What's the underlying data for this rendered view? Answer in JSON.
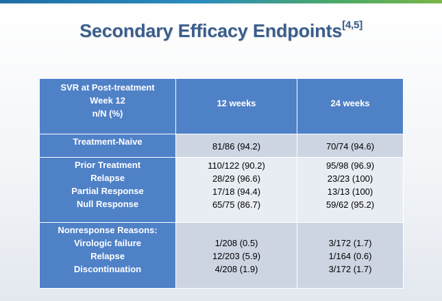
{
  "title": {
    "text": "Secondary Efficacy Endpoints",
    "ref": "[4,5]"
  },
  "table": {
    "header": {
      "col1_lines": [
        "SVR at Post-treatment",
        "Week 12",
        "n/N (%)"
      ],
      "col2": "12 weeks",
      "col3": "24 weeks"
    },
    "groups": [
      {
        "labels": [
          "Treatment-Naive"
        ],
        "col2": [
          "81/86 (94.2)"
        ],
        "col3": [
          "70/74 (94.6)"
        ]
      },
      {
        "labels": [
          "Prior Treatment",
          "Relapse",
          "Partial Response",
          "Null Response"
        ],
        "col2": [
          "110/122 (90.2)",
          "28/29 (96.6)",
          "17/18 (94.4)",
          "65/75 (86.7)"
        ],
        "col3": [
          "95/98 (96.9)",
          "23/23 (100)",
          "13/13 (100)",
          "59/62 (95.2)"
        ]
      },
      {
        "labels": [
          "Nonresponse Reasons:",
          "Virologic failure",
          "Relapse",
          "Discontinuation"
        ],
        "col2": [
          "1/208 (0.5)",
          "12/203 (5.9)",
          "4/208 (1.9)"
        ],
        "col3": [
          "3/172 (1.7)",
          "1/164 (0.6)",
          "3/172 (1.7)"
        ]
      }
    ]
  }
}
